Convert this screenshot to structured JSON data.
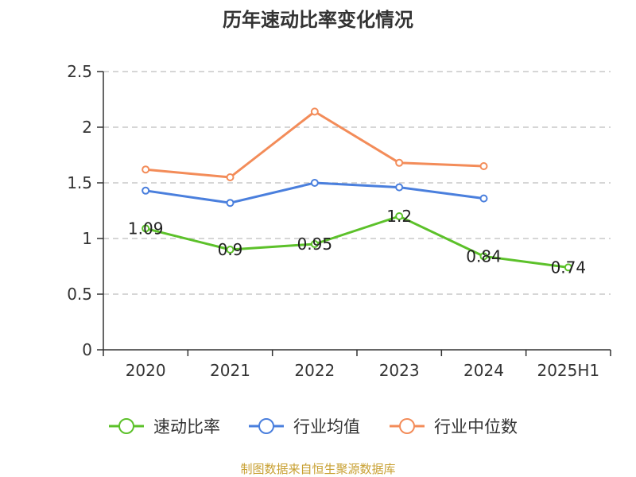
{
  "chart_data": {
    "type": "line",
    "title": "历年速动比率变化情况",
    "xlabel": "",
    "ylabel": "",
    "categories": [
      "2020",
      "2021",
      "2022",
      "2023",
      "2024",
      "2025H1"
    ],
    "ylim": [
      0,
      2.5
    ],
    "yticks": [
      "0",
      "0.5",
      "1",
      "1.5",
      "2",
      "2.5"
    ],
    "grid": true,
    "legend_position": "bottom",
    "series": [
      {
        "name": "速动比率",
        "color": "#5cc12a",
        "values": [
          1.09,
          0.9,
          0.95,
          1.2,
          0.84,
          0.74
        ],
        "labels": [
          "1.09",
          "0.9",
          "0.95",
          "1.2",
          "0.84",
          "0.74"
        ]
      },
      {
        "name": "行业均值",
        "color": "#4a7fdd",
        "values": [
          1.43,
          1.32,
          1.5,
          1.46,
          1.36,
          null
        ]
      },
      {
        "name": "行业中位数",
        "color": "#f38c59",
        "values": [
          1.62,
          1.55,
          2.14,
          1.68,
          1.65,
          null
        ]
      }
    ]
  },
  "source_note": "制图数据来自恒生聚源数据库"
}
